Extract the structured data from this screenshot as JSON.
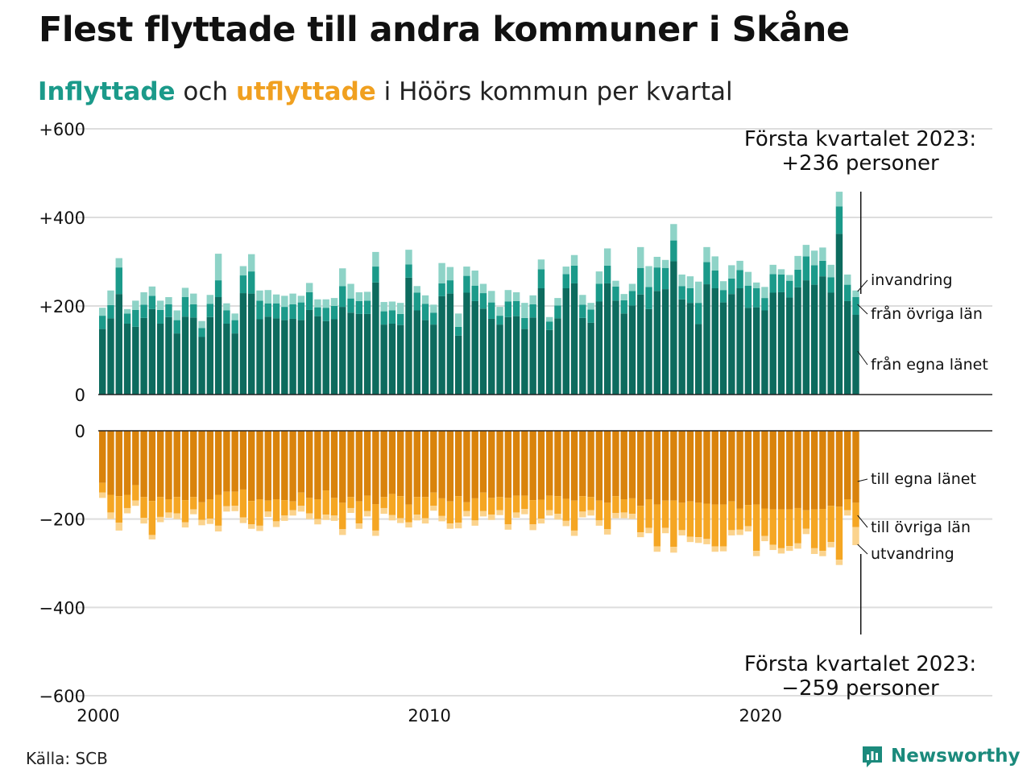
{
  "title": "Flest flyttade till andra kommuner i Skåne",
  "subtitle": {
    "part1": "Inflyttade",
    "part2": " och ",
    "part3": "utflyttade",
    "part4": " i Höörs kommun per kvartal"
  },
  "footer": {
    "source": "Källa: SCB"
  },
  "brand": {
    "name": "Newsworthy",
    "icon": "bar-chart-logo-icon"
  },
  "colors": {
    "in_own": "#0d6b5e",
    "in_other": "#1b9a8a",
    "in_abroad": "#8ed3c7",
    "out_own": "#d9830c",
    "out_other": "#f5a623",
    "out_abroad": "#fbd38d",
    "grid": "#dddddd"
  },
  "chart_data": {
    "type": "bar",
    "stacked": true,
    "x_label": "",
    "y_label": "",
    "x_range": [
      2000,
      2027
    ],
    "x_ticks": [
      "2000",
      "2010",
      "2020"
    ],
    "top_panel": {
      "ylim": [
        0,
        600
      ],
      "y_ticks": [
        "0",
        "+200",
        "+400",
        "+600"
      ],
      "series": [
        {
          "name": "från egna länet",
          "values": [
            148,
            172,
            227,
            160,
            153,
            173,
            193,
            160,
            175,
            138,
            176,
            174,
            130,
            175,
            220,
            160,
            138,
            229,
            228,
            170,
            176,
            172,
            168,
            171,
            168,
            191,
            177,
            166,
            170,
            198,
            185,
            182,
            182,
            253,
            158,
            160,
            157,
            264,
            190,
            168,
            158,
            222,
            228,
            133,
            230,
            211,
            194,
            171,
            158,
            175,
            177,
            148,
            174,
            240,
            146,
            172,
            240,
            251,
            173,
            162,
            210,
            251,
            212,
            183,
            201,
            226,
            193,
            234,
            238,
            301,
            215,
            207,
            159,
            249,
            240,
            208,
            227,
            240,
            196,
            197,
            190,
            230,
            231,
            219,
            242,
            258,
            248,
            267,
            230,
            363,
            211,
            180
          ]
        },
        {
          "name": "från övriga län",
          "values": [
            30,
            30,
            60,
            23,
            38,
            30,
            30,
            31,
            29,
            30,
            44,
            30,
            20,
            30,
            38,
            30,
            30,
            40,
            50,
            42,
            30,
            34,
            30,
            33,
            40,
            40,
            20,
            30,
            30,
            47,
            32,
            29,
            30,
            36,
            30,
            30,
            25,
            30,
            40,
            37,
            27,
            29,
            30,
            20,
            38,
            35,
            35,
            37,
            20,
            35,
            34,
            25,
            30,
            43,
            19,
            29,
            32,
            40,
            30,
            30,
            40,
            40,
            32,
            30,
            33,
            60,
            50,
            53,
            48,
            47,
            30,
            33,
            48,
            50,
            40,
            28,
            35,
            41,
            50,
            43,
            28,
            42,
            40,
            38,
            40,
            54,
            44,
            35,
            35,
            62,
            37,
            40
          ]
        },
        {
          "name": "invandring",
          "values": [
            18,
            33,
            21,
            10,
            21,
            28,
            21,
            21,
            16,
            22,
            21,
            24,
            16,
            20,
            60,
            16,
            15,
            21,
            39,
            23,
            30,
            20,
            25,
            24,
            15,
            21,
            18,
            19,
            18,
            40,
            33,
            20,
            20,
            33,
            21,
            20,
            25,
            33,
            15,
            19,
            18,
            46,
            30,
            30,
            21,
            34,
            21,
            26,
            20,
            26,
            20,
            34,
            20,
            22,
            10,
            17,
            17,
            24,
            22,
            15,
            28,
            39,
            13,
            14,
            16,
            47,
            47,
            24,
            18,
            37,
            26,
            27,
            48,
            34,
            32,
            20,
            30,
            21,
            31,
            13,
            25,
            21,
            12,
            13,
            31,
            26,
            33,
            30,
            28,
            33,
            23,
            15
          ]
        }
      ]
    },
    "bottom_panel": {
      "ylim": [
        -600,
        0
      ],
      "y_ticks": [
        "0",
        "−200",
        "−400",
        "−600"
      ],
      "series": [
        {
          "name": "till egna länet",
          "values": [
            -118,
            -145,
            -148,
            -145,
            -123,
            -150,
            -159,
            -150,
            -155,
            -150,
            -157,
            -150,
            -162,
            -155,
            -145,
            -138,
            -138,
            -133,
            -159,
            -155,
            -158,
            -155,
            -157,
            -160,
            -140,
            -152,
            -155,
            -135,
            -152,
            -163,
            -150,
            -160,
            -147,
            -166,
            -150,
            -143,
            -148,
            -167,
            -150,
            -150,
            -140,
            -153,
            -160,
            -148,
            -162,
            -153,
            -140,
            -152,
            -150,
            -152,
            -147,
            -147,
            -157,
            -156,
            -147,
            -148,
            -154,
            -158,
            -148,
            -150,
            -158,
            -163,
            -148,
            -155,
            -153,
            -170,
            -155,
            -167,
            -158,
            -158,
            -163,
            -160,
            -163,
            -165,
            -167,
            -167,
            -160,
            -176,
            -168,
            -167,
            -176,
            -178,
            -178,
            -178,
            -175,
            -180,
            -178,
            -177,
            -170,
            -172,
            -155,
            -163
          ]
        },
        {
          "name": "till övriga län",
          "values": [
            -22,
            -40,
            -60,
            -30,
            -35,
            -47,
            -77,
            -45,
            -30,
            -37,
            -50,
            -28,
            -40,
            -44,
            -70,
            -33,
            -32,
            -63,
            -53,
            -60,
            -25,
            -50,
            -35,
            -20,
            -30,
            -35,
            -45,
            -55,
            -40,
            -60,
            -25,
            -50,
            -35,
            -60,
            -25,
            -48,
            -50,
            -40,
            -40,
            -48,
            -30,
            -40,
            -50,
            -60,
            -20,
            -50,
            -42,
            -38,
            -30,
            -60,
            -38,
            -30,
            -55,
            -43,
            -33,
            -40,
            -50,
            -68,
            -35,
            -30,
            -45,
            -60,
            -38,
            -30,
            -35,
            -60,
            -65,
            -95,
            -62,
            -105,
            -62,
            -80,
            -78,
            -80,
            -95,
            -95,
            -65,
            -48,
            -48,
            -105,
            -62,
            -80,
            -88,
            -83,
            -80,
            -42,
            -88,
            -95,
            -82,
            -120,
            -25,
            -55
          ]
        },
        {
          "name": "utvandring",
          "values": [
            -12,
            -15,
            -18,
            -12,
            -12,
            -13,
            -10,
            -12,
            -12,
            -13,
            -12,
            -11,
            -12,
            -12,
            -13,
            -12,
            -12,
            -13,
            -10,
            -12,
            -12,
            -13,
            -12,
            -12,
            -13,
            -13,
            -12,
            -12,
            -12,
            -13,
            -11,
            -12,
            -12,
            -12,
            -13,
            -12,
            -11,
            -12,
            -13,
            -12,
            -11,
            -12,
            -12,
            -13,
            -12,
            -12,
            -12,
            -12,
            -11,
            -12,
            -12,
            -12,
            -13,
            -11,
            -12,
            -13,
            -12,
            -12,
            -13,
            -12,
            -12,
            -12,
            -12,
            -13,
            -12,
            -11,
            -12,
            -12,
            -12,
            -13,
            -12,
            -12,
            -13,
            -12,
            -12,
            -11,
            -12,
            -12,
            -12,
            -12,
            -12,
            -12,
            -12,
            -11,
            -12,
            -12,
            -13,
            -12,
            -12,
            -12,
            -12,
            -41
          ]
        }
      ]
    },
    "annotations": [
      {
        "text_line1": "Första kvartalet 2023:",
        "text_line2": "+236 personer",
        "panel": "top"
      },
      {
        "text_line1": "Första kvartalet 2023:",
        "text_line2": "−259 personer",
        "panel": "bottom"
      }
    ]
  }
}
